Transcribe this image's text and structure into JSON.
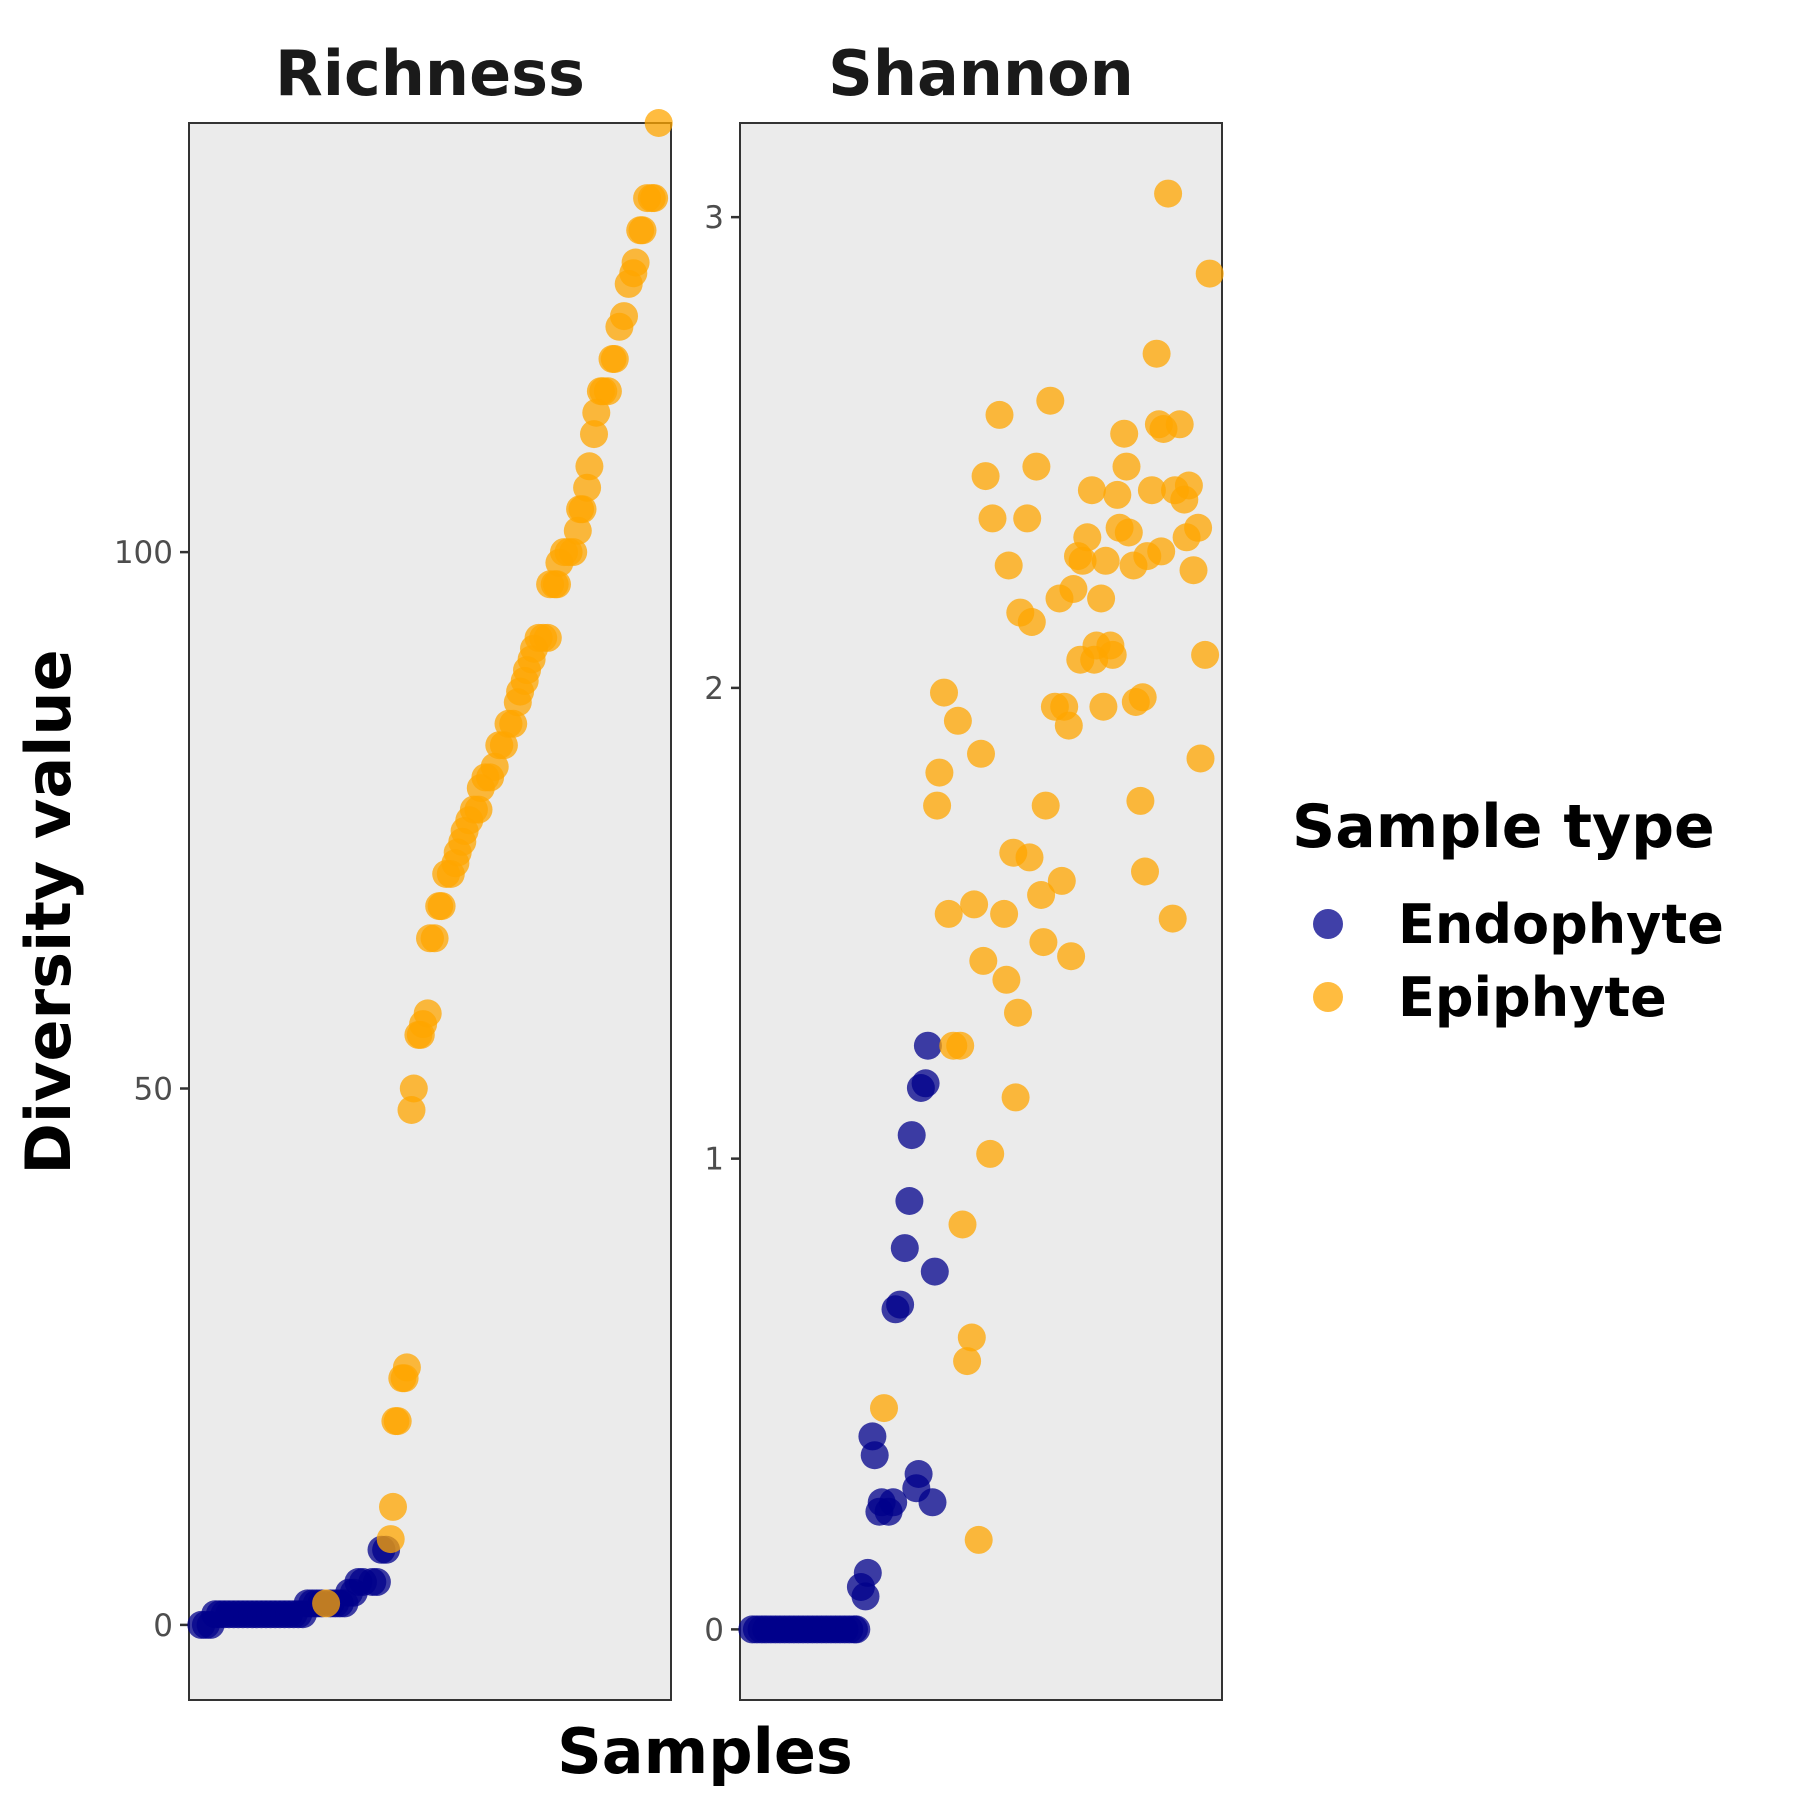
{
  "colors": {
    "Endophyte": "#00008B",
    "Epiphyte": "#FFA500",
    "panel": "#ebebeb"
  },
  "legend": {
    "title": "Sample type",
    "items": [
      {
        "label": "Endophyte",
        "color": "#00008B"
      },
      {
        "label": "Epiphyte",
        "color": "#FFA500"
      }
    ]
  },
  "axes": {
    "xlabel": "Samples",
    "ylabel": "Diversity value"
  },
  "chart_data": [
    {
      "type": "scatter",
      "title": "Richness",
      "xlabel": "Samples",
      "ylabel": "Diversity value",
      "ylim": [
        -7,
        140
      ],
      "yticks": [
        0,
        50,
        100
      ],
      "xlim": [
        0,
        100
      ],
      "series": [
        {
          "name": "Endophyte",
          "color": "#00008B",
          "points": [
            [
              0.5,
              0
            ],
            [
              1.5,
              0
            ],
            [
              2.5,
              0
            ],
            [
              3.5,
              1
            ],
            [
              4.5,
              1
            ],
            [
              5.5,
              1
            ],
            [
              6.5,
              1
            ],
            [
              7.5,
              1
            ],
            [
              8.5,
              1
            ],
            [
              9.5,
              1
            ],
            [
              10.5,
              1
            ],
            [
              11.5,
              1
            ],
            [
              12.5,
              1
            ],
            [
              13.5,
              1
            ],
            [
              14.5,
              1
            ],
            [
              15.5,
              1
            ],
            [
              16.5,
              1
            ],
            [
              17.5,
              1
            ],
            [
              18.5,
              1
            ],
            [
              19.5,
              1
            ],
            [
              20.5,
              1
            ],
            [
              21.5,
              1
            ],
            [
              22.5,
              1
            ],
            [
              23.5,
              2
            ],
            [
              24.5,
              2
            ],
            [
              25.5,
              2
            ],
            [
              26.5,
              2
            ],
            [
              28.5,
              2
            ],
            [
              29.5,
              2
            ],
            [
              30.5,
              2
            ],
            [
              31.5,
              2
            ],
            [
              32.5,
              3
            ],
            [
              33.5,
              3
            ],
            [
              34.5,
              4
            ],
            [
              35.5,
              4
            ],
            [
              37.5,
              4
            ],
            [
              38.5,
              4
            ],
            [
              39.5,
              7
            ],
            [
              40.5,
              7
            ]
          ]
        },
        {
          "name": "Epiphyte",
          "color": "#FFA500",
          "points": [
            [
              27.5,
              2
            ],
            [
              41.5,
              8
            ],
            [
              42,
              11
            ],
            [
              42.5,
              19
            ],
            [
              43,
              19
            ],
            [
              44,
              23
            ],
            [
              44.5,
              23
            ],
            [
              45,
              24
            ],
            [
              46,
              48
            ],
            [
              46.5,
              50
            ],
            [
              47.5,
              55
            ],
            [
              48,
              55
            ],
            [
              48.5,
              56
            ],
            [
              49.5,
              57
            ],
            [
              50,
              64
            ],
            [
              51,
              64
            ],
            [
              52,
              67
            ],
            [
              52.5,
              67
            ],
            [
              53.5,
              70
            ],
            [
              54.5,
              70
            ],
            [
              55.5,
              71
            ],
            [
              56,
              72
            ],
            [
              57,
              73
            ],
            [
              57.5,
              74
            ],
            [
              58.5,
              75
            ],
            [
              59.5,
              76
            ],
            [
              60.5,
              76
            ],
            [
              61,
              78
            ],
            [
              62,
              79
            ],
            [
              63,
              79
            ],
            [
              64,
              80
            ],
            [
              65,
              82
            ],
            [
              66,
              82
            ],
            [
              67,
              84
            ],
            [
              68,
              84
            ],
            [
              69,
              86
            ],
            [
              69.5,
              87
            ],
            [
              70.5,
              88
            ],
            [
              71,
              89
            ],
            [
              72,
              90
            ],
            [
              72.5,
              91
            ],
            [
              73.5,
              92
            ],
            [
              74.5,
              92
            ],
            [
              75.5,
              92
            ],
            [
              76,
              97
            ],
            [
              77,
              97
            ],
            [
              77.5,
              97
            ],
            [
              78,
              99
            ],
            [
              79,
              100
            ],
            [
              80,
              100
            ],
            [
              81,
              100
            ],
            [
              82,
              102
            ],
            [
              82.5,
              104
            ],
            [
              83,
              104
            ],
            [
              84,
              106
            ],
            [
              84.5,
              108
            ],
            [
              85.5,
              111
            ],
            [
              86,
              113
            ],
            [
              87,
              115
            ],
            [
              87.5,
              115
            ],
            [
              88.5,
              115
            ],
            [
              89.5,
              118
            ],
            [
              90,
              118
            ],
            [
              91,
              121
            ],
            [
              92,
              122
            ],
            [
              93,
              125
            ],
            [
              94,
              126
            ],
            [
              94.5,
              127
            ],
            [
              95.5,
              130
            ],
            [
              96,
              130
            ],
            [
              97,
              133
            ],
            [
              98,
              133
            ],
            [
              98.5,
              133
            ],
            [
              99.5,
              140
            ]
          ]
        }
      ]
    },
    {
      "type": "scatter",
      "title": "Shannon",
      "xlabel": "Samples",
      "ylabel": "Diversity value",
      "ylim": [
        -0.15,
        3.2
      ],
      "yticks": [
        0,
        1,
        2,
        3
      ],
      "xlim": [
        0,
        100
      ],
      "series": [
        {
          "name": "Endophyte",
          "color": "#00008B",
          "points": [
            [
              0.5,
              0
            ],
            [
              1.5,
              0
            ],
            [
              2.5,
              0
            ],
            [
              3.5,
              0
            ],
            [
              4.5,
              0
            ],
            [
              5.5,
              0
            ],
            [
              6.5,
              0
            ],
            [
              7.5,
              0
            ],
            [
              8.5,
              0
            ],
            [
              9.5,
              0
            ],
            [
              10.5,
              0
            ],
            [
              11.5,
              0
            ],
            [
              12.5,
              0
            ],
            [
              13.5,
              0
            ],
            [
              14.5,
              0
            ],
            [
              15.5,
              0
            ],
            [
              16.5,
              0
            ],
            [
              17.5,
              0
            ],
            [
              18.5,
              0
            ],
            [
              19.5,
              0
            ],
            [
              20.5,
              0
            ],
            [
              21.5,
              0
            ],
            [
              22.5,
              0
            ],
            [
              23,
              0
            ],
            [
              24,
              0.09
            ],
            [
              25,
              0.07
            ],
            [
              25.5,
              0.12
            ],
            [
              26.5,
              0.41
            ],
            [
              27,
              0.37
            ],
            [
              28,
              0.25
            ],
            [
              28.5,
              0.27
            ],
            [
              30,
              0.25
            ],
            [
              31,
              0.27
            ],
            [
              31.5,
              0.68
            ],
            [
              32.5,
              0.69
            ],
            [
              33.5,
              0.81
            ],
            [
              34.5,
              0.91
            ],
            [
              35,
              1.05
            ],
            [
              36,
              0.3
            ],
            [
              36.5,
              0.33
            ],
            [
              37,
              1.15
            ],
            [
              38,
              1.16
            ],
            [
              38.5,
              1.24
            ],
            [
              39.5,
              0.27
            ],
            [
              40,
              0.76
            ]
          ]
        },
        {
          "name": "Epiphyte",
          "color": "#FFA500",
          "points": [
            [
              29,
              0.47
            ],
            [
              40.5,
              1.75
            ],
            [
              41,
              1.82
            ],
            [
              42,
              1.99
            ],
            [
              43,
              1.52
            ],
            [
              44,
              1.24
            ],
            [
              45,
              1.93
            ],
            [
              45.5,
              1.24
            ],
            [
              46,
              0.86
            ],
            [
              47,
              0.57
            ],
            [
              48,
              0.62
            ],
            [
              48.5,
              1.54
            ],
            [
              49.5,
              0.19
            ],
            [
              50,
              1.86
            ],
            [
              50.5,
              1.42
            ],
            [
              51,
              2.45
            ],
            [
              52,
              1.01
            ],
            [
              52.5,
              2.36
            ],
            [
              54,
              2.58
            ],
            [
              55,
              1.52
            ],
            [
              55.5,
              1.38
            ],
            [
              56,
              2.26
            ],
            [
              57,
              1.65
            ],
            [
              57.5,
              1.13
            ],
            [
              58,
              1.31
            ],
            [
              58.5,
              2.16
            ],
            [
              60,
              2.36
            ],
            [
              60.5,
              1.64
            ],
            [
              61,
              2.14
            ],
            [
              62,
              2.47
            ],
            [
              63,
              1.56
            ],
            [
              63.5,
              1.46
            ],
            [
              64,
              1.75
            ],
            [
              65,
              2.61
            ],
            [
              66,
              1.96
            ],
            [
              67,
              2.19
            ],
            [
              67.5,
              1.59
            ],
            [
              68,
              1.96
            ],
            [
              69,
              1.92
            ],
            [
              69.5,
              1.43
            ],
            [
              70,
              2.21
            ],
            [
              71,
              2.28
            ],
            [
              71.5,
              2.06
            ],
            [
              72,
              2.27
            ],
            [
              73,
              2.32
            ],
            [
              74,
              2.42
            ],
            [
              74.5,
              2.06
            ],
            [
              75,
              2.09
            ],
            [
              76,
              2.19
            ],
            [
              76.5,
              1.96
            ],
            [
              77,
              2.27
            ],
            [
              78,
              2.09
            ],
            [
              78.5,
              2.07
            ],
            [
              79.5,
              2.41
            ],
            [
              80,
              2.34
            ],
            [
              81,
              2.54
            ],
            [
              81.5,
              2.47
            ],
            [
              82,
              2.33
            ],
            [
              83,
              2.26
            ],
            [
              83.5,
              1.97
            ],
            [
              84.5,
              1.76
            ],
            [
              85,
              1.98
            ],
            [
              85.5,
              1.61
            ],
            [
              86,
              2.28
            ],
            [
              87,
              2.42
            ],
            [
              88,
              2.71
            ],
            [
              88.5,
              2.56
            ],
            [
              89,
              2.29
            ],
            [
              89.5,
              2.55
            ],
            [
              90.5,
              3.05
            ],
            [
              91.5,
              1.51
            ],
            [
              92,
              2.42
            ],
            [
              93,
              2.56
            ],
            [
              94,
              2.4
            ],
            [
              94.5,
              2.32
            ],
            [
              95,
              2.43
            ],
            [
              96,
              2.25
            ],
            [
              97,
              2.34
            ],
            [
              97.5,
              1.85
            ],
            [
              98.5,
              2.07
            ],
            [
              99.5,
              2.88
            ]
          ]
        }
      ]
    }
  ]
}
